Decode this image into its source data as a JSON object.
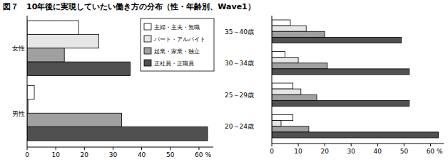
{
  "chart_data": [
    {
      "type": "bar",
      "orientation": "horizontal",
      "title": "図７　10年後に実現していたい働き方の分布（性・年齢別、Wave1）",
      "categories": [
        "女性",
        "男性"
      ],
      "series": [
        {
          "name": "主婦・主夫・無職",
          "color": "#ffffff",
          "values": [
            18,
            2.5
          ]
        },
        {
          "name": "パート・アルバイト",
          "color": "#e6e6e6",
          "values": [
            25,
            0.3
          ]
        },
        {
          "name": "起業・家業・独立",
          "color": "#a0a0a0",
          "values": [
            13,
            33
          ]
        },
        {
          "name": "正社員・正職員",
          "color": "#505050",
          "values": [
            36,
            63
          ]
        }
      ],
      "xlim": [
        0,
        65
      ],
      "xticks": [
        0,
        10,
        20,
        30,
        40,
        50,
        {
          "value": 60,
          "label": "60 %"
        }
      ],
      "legend": "top-right",
      "grid": false
    },
    {
      "type": "bar",
      "orientation": "horizontal",
      "categories": [
        "35～40歳",
        "30～34歳",
        "25～29歳",
        "20～24歳"
      ],
      "series": [
        {
          "color": "#ffffff",
          "values": [
            7,
            5,
            8,
            8
          ]
        },
        {
          "color": "#e6e6e6",
          "values": [
            13,
            10,
            11,
            3.5
          ]
        },
        {
          "color": "#a0a0a0",
          "values": [
            20,
            21,
            17,
            14
          ]
        },
        {
          "color": "#505050",
          "values": [
            49,
            52,
            52,
            63
          ]
        }
      ],
      "xlim": [
        0,
        65
      ],
      "xticks": [
        0,
        10,
        20,
        30,
        40,
        50,
        {
          "value": 60,
          "label": "60 %"
        }
      ],
      "grid": false
    }
  ]
}
